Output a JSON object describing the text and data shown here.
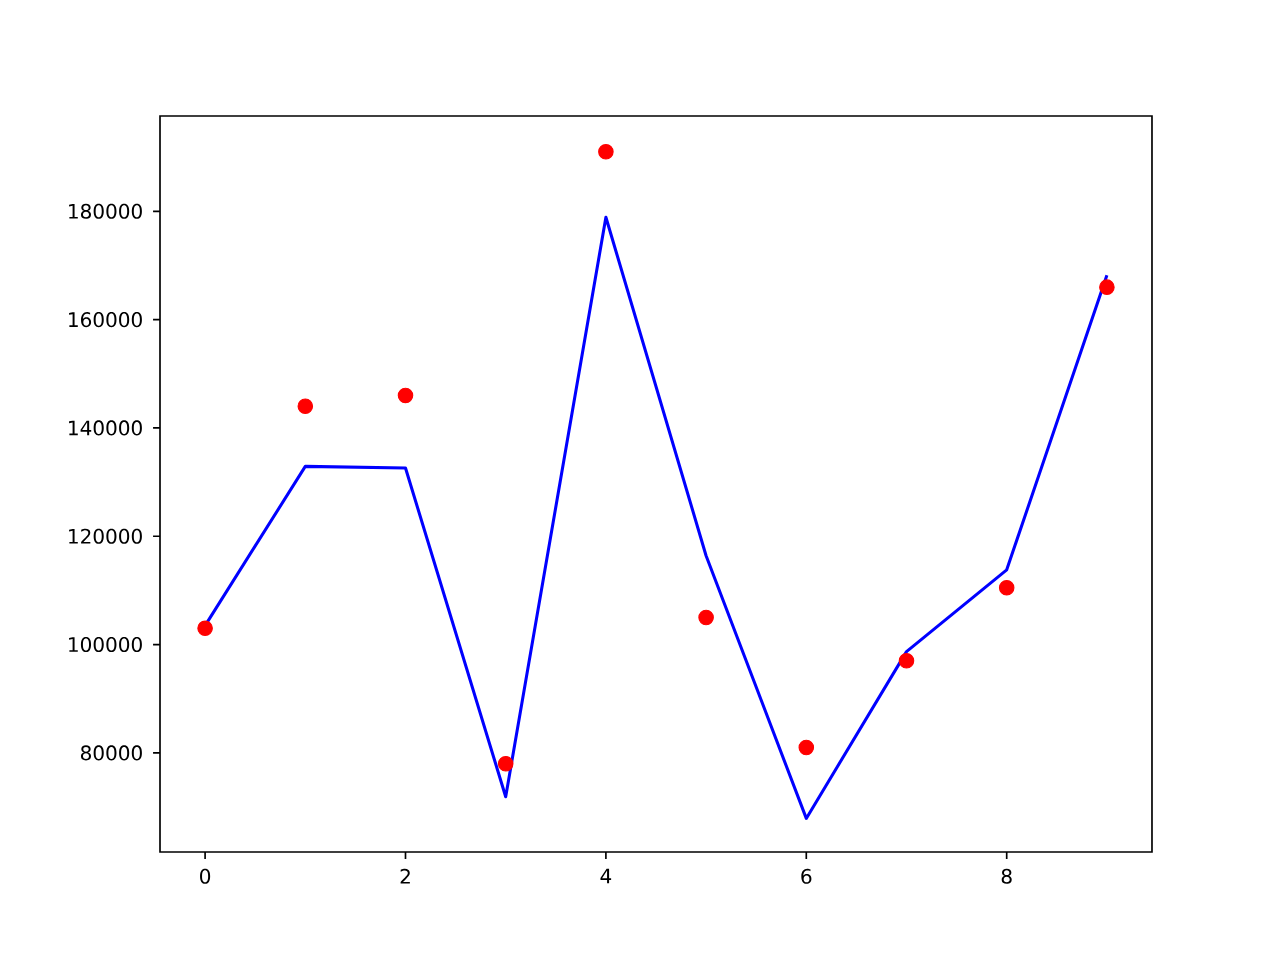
{
  "chart_data": {
    "type": "line",
    "x": [
      0,
      1,
      2,
      3,
      4,
      5,
      6,
      7,
      8,
      9
    ],
    "series": [
      {
        "color": "#0000ff",
        "marker": "none",
        "values": [
          103500,
          132900,
          132600,
          71900,
          178900,
          116400,
          67900,
          98700,
          113800,
          168200
        ]
      },
      {
        "type": "scatter",
        "color": "#ff0000",
        "marker": "circle",
        "values": [
          103000,
          144000,
          146000,
          78000,
          191000,
          105000,
          81000,
          97000,
          110500,
          166000
        ]
      }
    ],
    "xlim": [
      -0.45,
      9.45
    ],
    "ylim": [
      61700,
      197600
    ],
    "xticks": [
      0,
      2,
      4,
      6,
      8
    ],
    "yticks": [
      80000,
      100000,
      120000,
      140000,
      160000,
      180000
    ],
    "grid": false
  }
}
